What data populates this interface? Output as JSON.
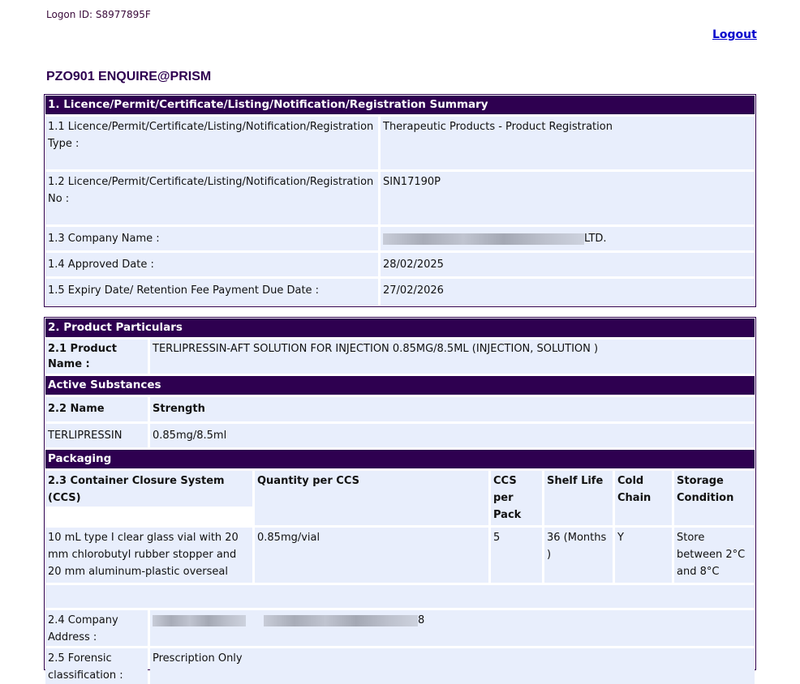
{
  "logon": "Logon ID: S8977895F",
  "logout": "Logout",
  "title": "PZO901 ENQUIRE@PRISM",
  "s1": {
    "header": "1. Licence/Permit/Certificate/Listing/Notification/Registration Summary",
    "rows": [
      {
        "label": "1.1 Licence/Permit/Certificate/Listing/Notification/Registration Type :",
        "value": "Therapeutic Products - Product Registration"
      },
      {
        "label": "1.2 Licence/Permit/Certificate/Listing/Notification/Registration No :",
        "value": "SIN17190P"
      },
      {
        "label": "1.3 Company Name :",
        "value": "LTD."
      },
      {
        "label": "1.4 Approved Date :",
        "value": "28/02/2025"
      },
      {
        "label": "1.5 Expiry Date/ Retention Fee Payment Due Date :",
        "value": "27/02/2026"
      }
    ]
  },
  "s2": {
    "header": "2. Product Particulars",
    "product_label": "2.1 Product Name :",
    "product_value": "TERLIPRESSIN-AFT SOLUTION FOR INJECTION 0.85MG/8.5ML  (INJECTION, SOLUTION )",
    "active_header": "Active Substances",
    "name_col": "2.2 Name",
    "strength_col": "Strength",
    "substance": {
      "name": "TERLIPRESSIN",
      "strength": "0.85mg/8.5ml"
    },
    "packaging_header": "Packaging",
    "pack_cols": [
      "2.3 Container Closure System (CCS)",
      "Quantity per CCS",
      "CCS per Pack",
      "Shelf Life",
      "Cold Chain",
      "Storage Condition"
    ],
    "pack_row": [
      "10 mL type I clear glass vial with 20 mm chlorobutyl rubber stopper and 20 mm aluminum-plastic overseal",
      "0.85mg/vial",
      "5",
      "36  (Months )",
      "Y",
      "Store between 2°C and 8°C"
    ],
    "address_label": "2.4 Company Address :",
    "address_value": "8",
    "forensic_label": "2.5 Forensic classification :",
    "forensic_value": "Prescription Only"
  }
}
